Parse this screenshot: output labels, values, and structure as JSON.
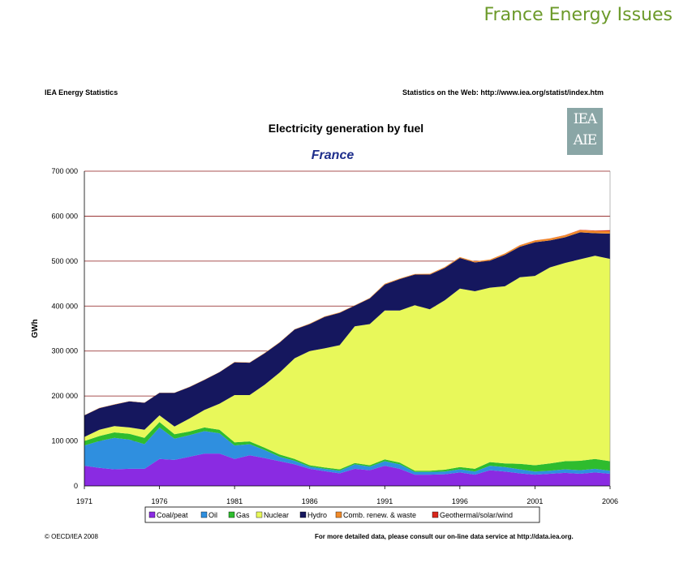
{
  "page": {
    "title": "France Energy Issues",
    "header_left": "IEA Energy Statistics",
    "header_right": "Statistics on the Web: http://www.iea.org/statist/index.htm",
    "logo_top": "IEA",
    "logo_bottom": "AIE",
    "footer_left": "© OECD/IEA 2008",
    "footer_right": "For more detailed data, please consult our on-line data service at http://data.iea.org."
  },
  "chart_data": {
    "type": "area",
    "stacked": true,
    "title": "Electricity generation by fuel",
    "subtitle": "France",
    "ylabel": "GWh",
    "xlabel": "",
    "ylim": [
      0,
      700000
    ],
    "yticks": [
      "0",
      "100 000",
      "200 000",
      "300 000",
      "400 000",
      "500 000",
      "600 000",
      "700 000"
    ],
    "xticks": [
      "1971",
      "1976",
      "1981",
      "1986",
      "1991",
      "1996",
      "2001",
      "2006"
    ],
    "grid": true,
    "legend": "bottom",
    "x": [
      1971,
      1972,
      1973,
      1974,
      1975,
      1976,
      1977,
      1978,
      1979,
      1980,
      1981,
      1982,
      1983,
      1984,
      1985,
      1986,
      1987,
      1988,
      1989,
      1990,
      1991,
      1992,
      1993,
      1994,
      1995,
      1996,
      1997,
      1998,
      1999,
      2000,
      2001,
      2002,
      2003,
      2004,
      2005,
      2006
    ],
    "series": [
      {
        "name": "Coal/peat",
        "color": "#8a2be2",
        "values": [
          45000,
          40000,
          37000,
          38000,
          38000,
          60000,
          58000,
          65000,
          72000,
          72000,
          60000,
          68000,
          62000,
          55000,
          48000,
          38000,
          33000,
          28000,
          38000,
          35000,
          45000,
          38000,
          25000,
          25000,
          26000,
          30000,
          25000,
          35000,
          32000,
          28000,
          25000,
          27000,
          29000,
          27000,
          30000,
          27000
        ]
      },
      {
        "name": "Oil",
        "color": "#2f8fdf",
        "values": [
          45000,
          60000,
          70000,
          65000,
          55000,
          70000,
          47000,
          48000,
          50000,
          45000,
          30000,
          25000,
          18000,
          10000,
          8000,
          5000,
          5000,
          6000,
          10000,
          8000,
          10000,
          10000,
          6000,
          6000,
          6000,
          7000,
          7000,
          10000,
          10000,
          9000,
          7000,
          7000,
          8000,
          8000,
          8000,
          7000
        ]
      },
      {
        "name": "Gas",
        "color": "#2ebc2e",
        "values": [
          10000,
          11000,
          12000,
          13000,
          14000,
          12000,
          10000,
          8000,
          8000,
          8000,
          7000,
          6000,
          5000,
          5000,
          4000,
          3000,
          3000,
          3000,
          3000,
          3000,
          4000,
          4000,
          3000,
          3000,
          4000,
          5000,
          6000,
          8000,
          8000,
          12000,
          14000,
          16000,
          18000,
          21000,
          22000,
          21000
        ]
      },
      {
        "name": "Nuclear",
        "color": "#e8f85a",
        "values": [
          9000,
          14000,
          14000,
          14000,
          18000,
          15000,
          17000,
          29000,
          39000,
          58000,
          105000,
          103000,
          140000,
          182000,
          224000,
          254000,
          265000,
          276000,
          304000,
          314000,
          331000,
          338000,
          368000,
          359000,
          377000,
          397000,
          395000,
          388000,
          394000,
          415000,
          421000,
          436000,
          441000,
          448000,
          452000,
          450000
        ]
      },
      {
        "name": "Hydro",
        "color": "#15175e",
        "values": [
          48000,
          48000,
          48000,
          58000,
          60000,
          50000,
          75000,
          70000,
          67000,
          70000,
          73000,
          72000,
          70000,
          67000,
          64000,
          60000,
          70000,
          72000,
          46000,
          57000,
          58000,
          70000,
          68000,
          77000,
          72000,
          68000,
          64000,
          60000,
          70000,
          68000,
          75000,
          60000,
          57000,
          60000,
          50000,
          56000
        ]
      },
      {
        "name": "Comb. renew. & waste",
        "color": "#f08a2a",
        "values": [
          500,
          500,
          500,
          500,
          500,
          500,
          500,
          500,
          500,
          500,
          800,
          800,
          800,
          800,
          800,
          1000,
          1000,
          1000,
          1000,
          1200,
          1500,
          1500,
          1500,
          1800,
          2000,
          2000,
          2200,
          2500,
          3000,
          3500,
          4000,
          4200,
          4500,
          5000,
          5200,
          5500
        ]
      },
      {
        "name": "Geothermal/solar/wind",
        "color": "#d8281c",
        "values": [
          0,
          0,
          0,
          0,
          0,
          0,
          0,
          0,
          0,
          0,
          0,
          0,
          0,
          0,
          0,
          0,
          0,
          0,
          0,
          0,
          0,
          0,
          0,
          0,
          0,
          0,
          0,
          0,
          100,
          100,
          200,
          300,
          400,
          600,
          1000,
          2200
        ]
      }
    ]
  }
}
